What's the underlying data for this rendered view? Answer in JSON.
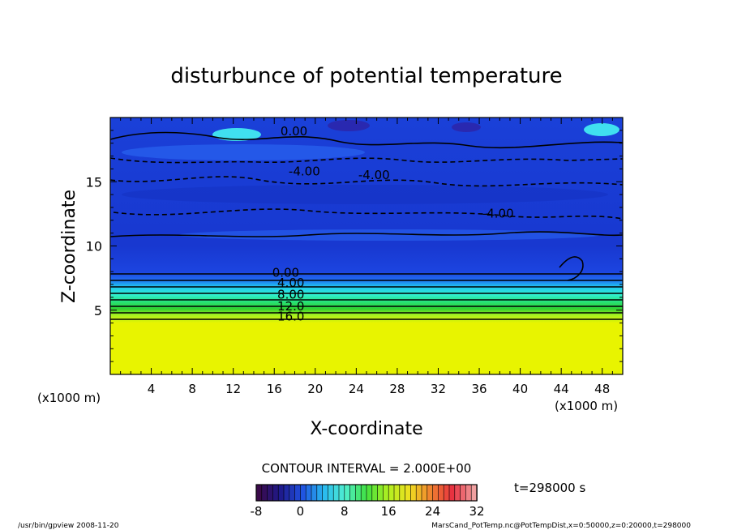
{
  "chart_data": {
    "type": "heatmap",
    "title": "disturbunce of potential temperature",
    "xlabel": "X-coordinate",
    "ylabel": "Z-coordinate",
    "x_unit_left": "(x1000 m)",
    "x_unit_right": "(x1000 m)",
    "xlim": [
      0,
      50
    ],
    "ylim": [
      0,
      20
    ],
    "x_ticks": [
      4,
      8,
      12,
      16,
      20,
      24,
      28,
      32,
      36,
      40,
      44,
      48
    ],
    "y_ticks": [
      5,
      10,
      15
    ],
    "contour_labels": [
      {
        "text": "0.00",
        "x": 16.6,
        "z": 18.6
      },
      {
        "text": "-4.00",
        "x": 17.4,
        "z": 15.5
      },
      {
        "text": "-4.00",
        "x": 24.2,
        "z": 15.2
      },
      {
        "text": "-4.00",
        "x": 36.3,
        "z": 12.2
      },
      {
        "text": "0.00",
        "x": 15.8,
        "z": 7.6
      },
      {
        "text": "4.00",
        "x": 16.3,
        "z": 6.8
      },
      {
        "text": "8.00",
        "x": 16.3,
        "z": 5.9
      },
      {
        "text": "12.0",
        "x": 16.3,
        "z": 5.0
      },
      {
        "text": "16.0",
        "x": 16.3,
        "z": 4.2
      }
    ],
    "contour_interval_text": "CONTOUR INTERVAL = 2.000E+00",
    "colorbar": {
      "min": -8,
      "max": 32,
      "tick_labels": [
        "-8",
        "0",
        "8",
        "16",
        "24",
        "32"
      ],
      "colors": [
        "#3a0a4a",
        "#1e1a8c",
        "#2050e0",
        "#28b8f0",
        "#50f0d0",
        "#40e040",
        "#b0f020",
        "#f0e020",
        "#f08030",
        "#e83040",
        "#f0a0a0"
      ]
    },
    "colors": {
      "upper_field": "#1a3cd8",
      "upper_light": "#2c6cf0",
      "transition": "#20d8f0",
      "lower_field": "#e8f000",
      "green": "#20c040"
    },
    "time_label": "t=298000 s"
  },
  "footer": {
    "left": "/usr/bin/gpview  2008-11-20",
    "right": "MarsCand_PotTemp.nc@PotTempDist,x=0:50000,z=0:20000,t=298000"
  }
}
